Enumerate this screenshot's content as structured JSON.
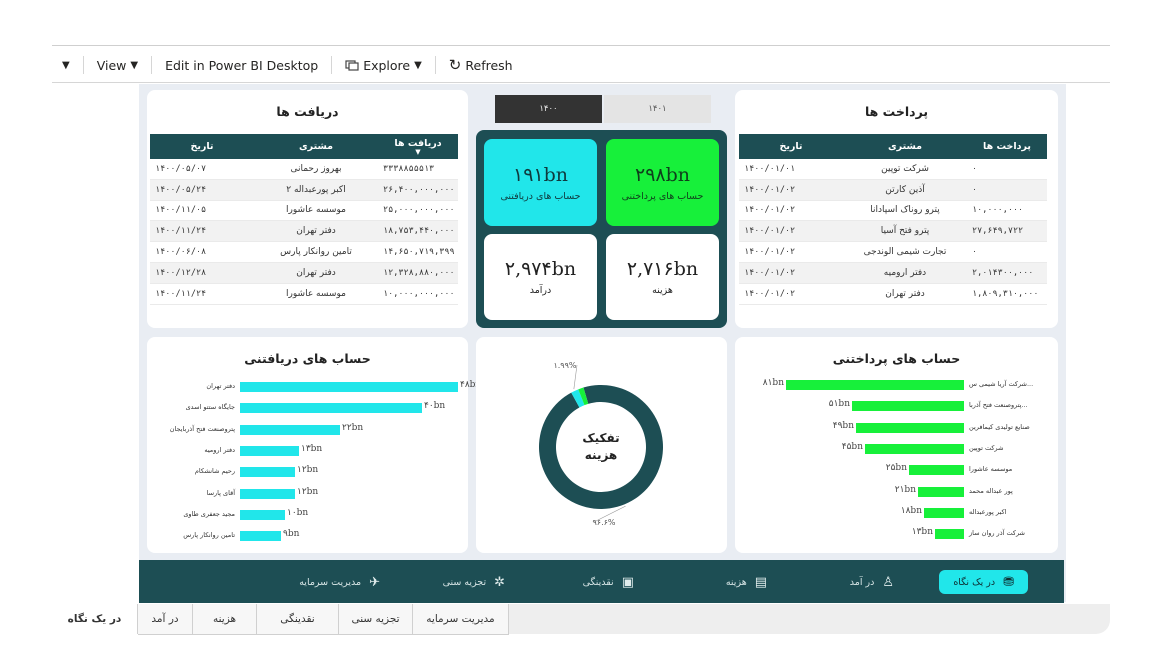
{
  "toolbar": {
    "view_label": "View",
    "edit_label": "Edit in Power BI Desktop",
    "explore_label": "Explore",
    "refresh_label": "Refresh"
  },
  "slicer": {
    "years": [
      "۱۴۰۰",
      "۱۴۰۱"
    ],
    "selected": "۱۴۰۰"
  },
  "receipts": {
    "title": "دریافت ها",
    "columns": [
      "دریافت ها",
      "مشتری",
      "تاریخ"
    ],
    "rows": [
      {
        "amount": "۳۳۳۸۸۵۵۵۱۳",
        "customer": "بهروز رحمانی",
        "date": "۱۴۰۰/۰۵/۰۷"
      },
      {
        "amount": "۲۶,۴۰۰,۰۰۰,۰۰۰",
        "customer": "اکبر پورعبداله ۲",
        "date": "۱۴۰۰/۰۵/۲۴"
      },
      {
        "amount": "۲۵,۰۰۰,۰۰۰,۰۰۰",
        "customer": "موسسه عاشورا",
        "date": "۱۴۰۰/۱۱/۰۵"
      },
      {
        "amount": "۱۸,۷۵۳,۴۴۰,۰۰۰",
        "customer": "دفتر تهران",
        "date": "۱۴۰۰/۱۱/۲۴"
      },
      {
        "amount": "۱۴,۶۵۰,۷۱۹,۳۹۹",
        "customer": "تامین روانکار پارس",
        "date": "۱۴۰۰/۰۶/۰۸"
      },
      {
        "amount": "۱۲,۳۲۸,۸۸۰,۰۰۰",
        "customer": "دفتر تهران",
        "date": "۱۴۰۰/۱۲/۲۸"
      },
      {
        "amount": "۱۰,۰۰۰,۰۰۰,۰۰۰",
        "customer": "موسسه عاشورا",
        "date": "۱۴۰۰/۱۱/۲۴"
      }
    ]
  },
  "payments": {
    "title": "پرداخت ها",
    "columns": [
      "پرداخت ها",
      "مشتری",
      "تاریخ"
    ],
    "rows": [
      {
        "amount": "۰",
        "customer": "شرکت توپین",
        "date": "۱۴۰۰/۰۱/۰۱"
      },
      {
        "amount": "۰",
        "customer": "آذین کارتن",
        "date": "۱۴۰۰/۰۱/۰۲"
      },
      {
        "amount": "۱۰,۰۰۰,۰۰۰",
        "customer": "پترو روناک اسپادانا",
        "date": "۱۴۰۰/۰۱/۰۲"
      },
      {
        "amount": "۲۷,۶۴۹,۷۲۲",
        "customer": "پترو فتح آسیا",
        "date": "۱۴۰۰/۰۱/۰۲"
      },
      {
        "amount": "۰",
        "customer": "تجارت شیمی الوندجی",
        "date": "۱۴۰۰/۰۱/۰۲"
      },
      {
        "amount": "۲,۰۱۴۳۰۰,۰۰۰",
        "customer": "دفتر ارومیه",
        "date": "۱۴۰۰/۰۱/۰۲"
      },
      {
        "amount": "۱,۸۰۹,۳۱۰,۰۰۰",
        "customer": "دفتر تهران",
        "date": "۱۴۰۰/۰۱/۰۲"
      }
    ]
  },
  "kpis": {
    "receivable": {
      "value": "۱۹۱bn",
      "label": "حساب های دریافتنی",
      "color": "#21e6ea"
    },
    "payable": {
      "value": "۲۹۸bn",
      "label": "حساب های پرداختنی",
      "color": "#17f03a"
    },
    "income": {
      "value": "۲,۹۷۴bn",
      "label": "درآمد"
    },
    "cost": {
      "value": "۲,۷۱۶bn",
      "label": "هزینه"
    }
  },
  "receivable_chart": {
    "title": "حساب های دریافتنی",
    "color": "#21e6ea",
    "chart_data": {
      "type": "bar",
      "orientation": "horizontal",
      "categories": [
        "دفتر تهران",
        "جایگاه ستتو اسدی",
        "پتروصنعت فتح آذربایجان",
        "دفتر ارومیه",
        "رحیم شانشکام",
        "آقای پارسا",
        "مجید جعفری طاوی",
        "تامین روانکار پارس"
      ],
      "values": [
        48,
        40,
        22,
        13,
        12,
        12,
        10,
        9
      ],
      "value_labels": [
        "۴۸bn",
        "۴۰bn",
        "۲۲bn",
        "۱۳bn",
        "۱۲bn",
        "۱۲bn",
        "۱۰bn",
        "۹bn"
      ]
    }
  },
  "payable_chart": {
    "title": "حساب های پرداختنی",
    "color": "#17f03a",
    "chart_data": {
      "type": "bar",
      "orientation": "horizontal",
      "categories": [
        "شرکت آریا شیمی س...",
        "پتروصنعت فتح آذربا...",
        "صنایع تولیدی کیمافرین",
        "شرکت توپین",
        "موسسه عاشورا",
        "پور عبداله محمد",
        "اکبر پورعبداله",
        "شرکت آذر روان ساز"
      ],
      "values": [
        81,
        51,
        49,
        45,
        25,
        21,
        18,
        13
      ],
      "value_labels": [
        "۸۱bn",
        "۵۱bn",
        "۴۹bn",
        "۴۵bn",
        "۲۵bn",
        "۲۱bn",
        "۱۸bn",
        "۱۳bn"
      ]
    }
  },
  "donut": {
    "title_line1": "تفکیک",
    "title_line2": "هزینه",
    "chart_data": {
      "type": "pie",
      "variant": "donut",
      "slices": [
        {
          "value": 96.6,
          "label": "۹۶.۶%",
          "color": "#1d4e54"
        },
        {
          "value": 1.99,
          "label": "۱.۹۹%",
          "color": "#21e6ea"
        },
        {
          "value": 1.41,
          "label": "",
          "color": "#17f03a"
        }
      ]
    }
  },
  "nav": {
    "items": [
      {
        "label": "در یک نگاه",
        "icon": "⛃",
        "name": "at-a-glance"
      },
      {
        "label": "در آمد",
        "icon": "♙",
        "name": "income"
      },
      {
        "label": "هزینه",
        "icon": "▤",
        "name": "cost"
      },
      {
        "label": "نقدینگی",
        "icon": "▣",
        "name": "liquidity"
      },
      {
        "label": "تجزیه سنی",
        "icon": "✲",
        "name": "aging"
      },
      {
        "label": "مدیریت سرمایه",
        "icon": "✈",
        "name": "capital"
      }
    ]
  },
  "tabs": [
    "در یک نگاه",
    "در آمد",
    "هزینه",
    "نقدینگی",
    "تجزیه سنی",
    "مدیریت سرمایه"
  ]
}
